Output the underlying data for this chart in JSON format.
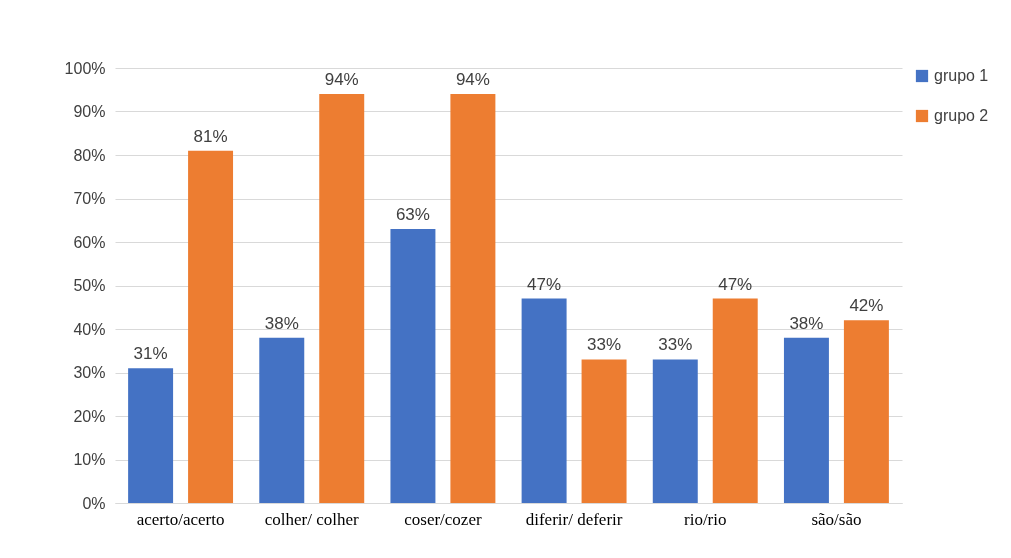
{
  "chart_data": {
    "type": "bar",
    "categories": [
      "acerto/acerto",
      "colher/ colher",
      "coser/cozer",
      "diferir/ deferir",
      "rio/rio",
      "são/são"
    ],
    "series": [
      {
        "name": "grupo 1",
        "color": "#4472c4",
        "values": [
          31,
          38,
          63,
          47,
          33,
          38
        ],
        "value_labels": [
          "31%",
          "38%",
          "63%",
          "47%",
          "33%",
          "38%"
        ]
      },
      {
        "name": "grupo 2",
        "color": "#ed7d31",
        "values": [
          81,
          94,
          94,
          33,
          47,
          42
        ],
        "value_labels": [
          "81%",
          "94%",
          "94%",
          "33%",
          "47%",
          "42%"
        ]
      }
    ],
    "ylim": [
      0,
      100
    ],
    "yticks": [
      {
        "value": 0,
        "label": "0%"
      },
      {
        "value": 10,
        "label": "10%"
      },
      {
        "value": 20,
        "label": "20%"
      },
      {
        "value": 30,
        "label": "30%"
      },
      {
        "value": 40,
        "label": "40%"
      },
      {
        "value": 50,
        "label": "50%"
      },
      {
        "value": 60,
        "label": "60%"
      },
      {
        "value": 70,
        "label": "70%"
      },
      {
        "value": 80,
        "label": "80%"
      },
      {
        "value": 90,
        "label": "90%"
      },
      {
        "value": 100,
        "label": "100%"
      }
    ],
    "grid": "y",
    "legend": "right"
  }
}
